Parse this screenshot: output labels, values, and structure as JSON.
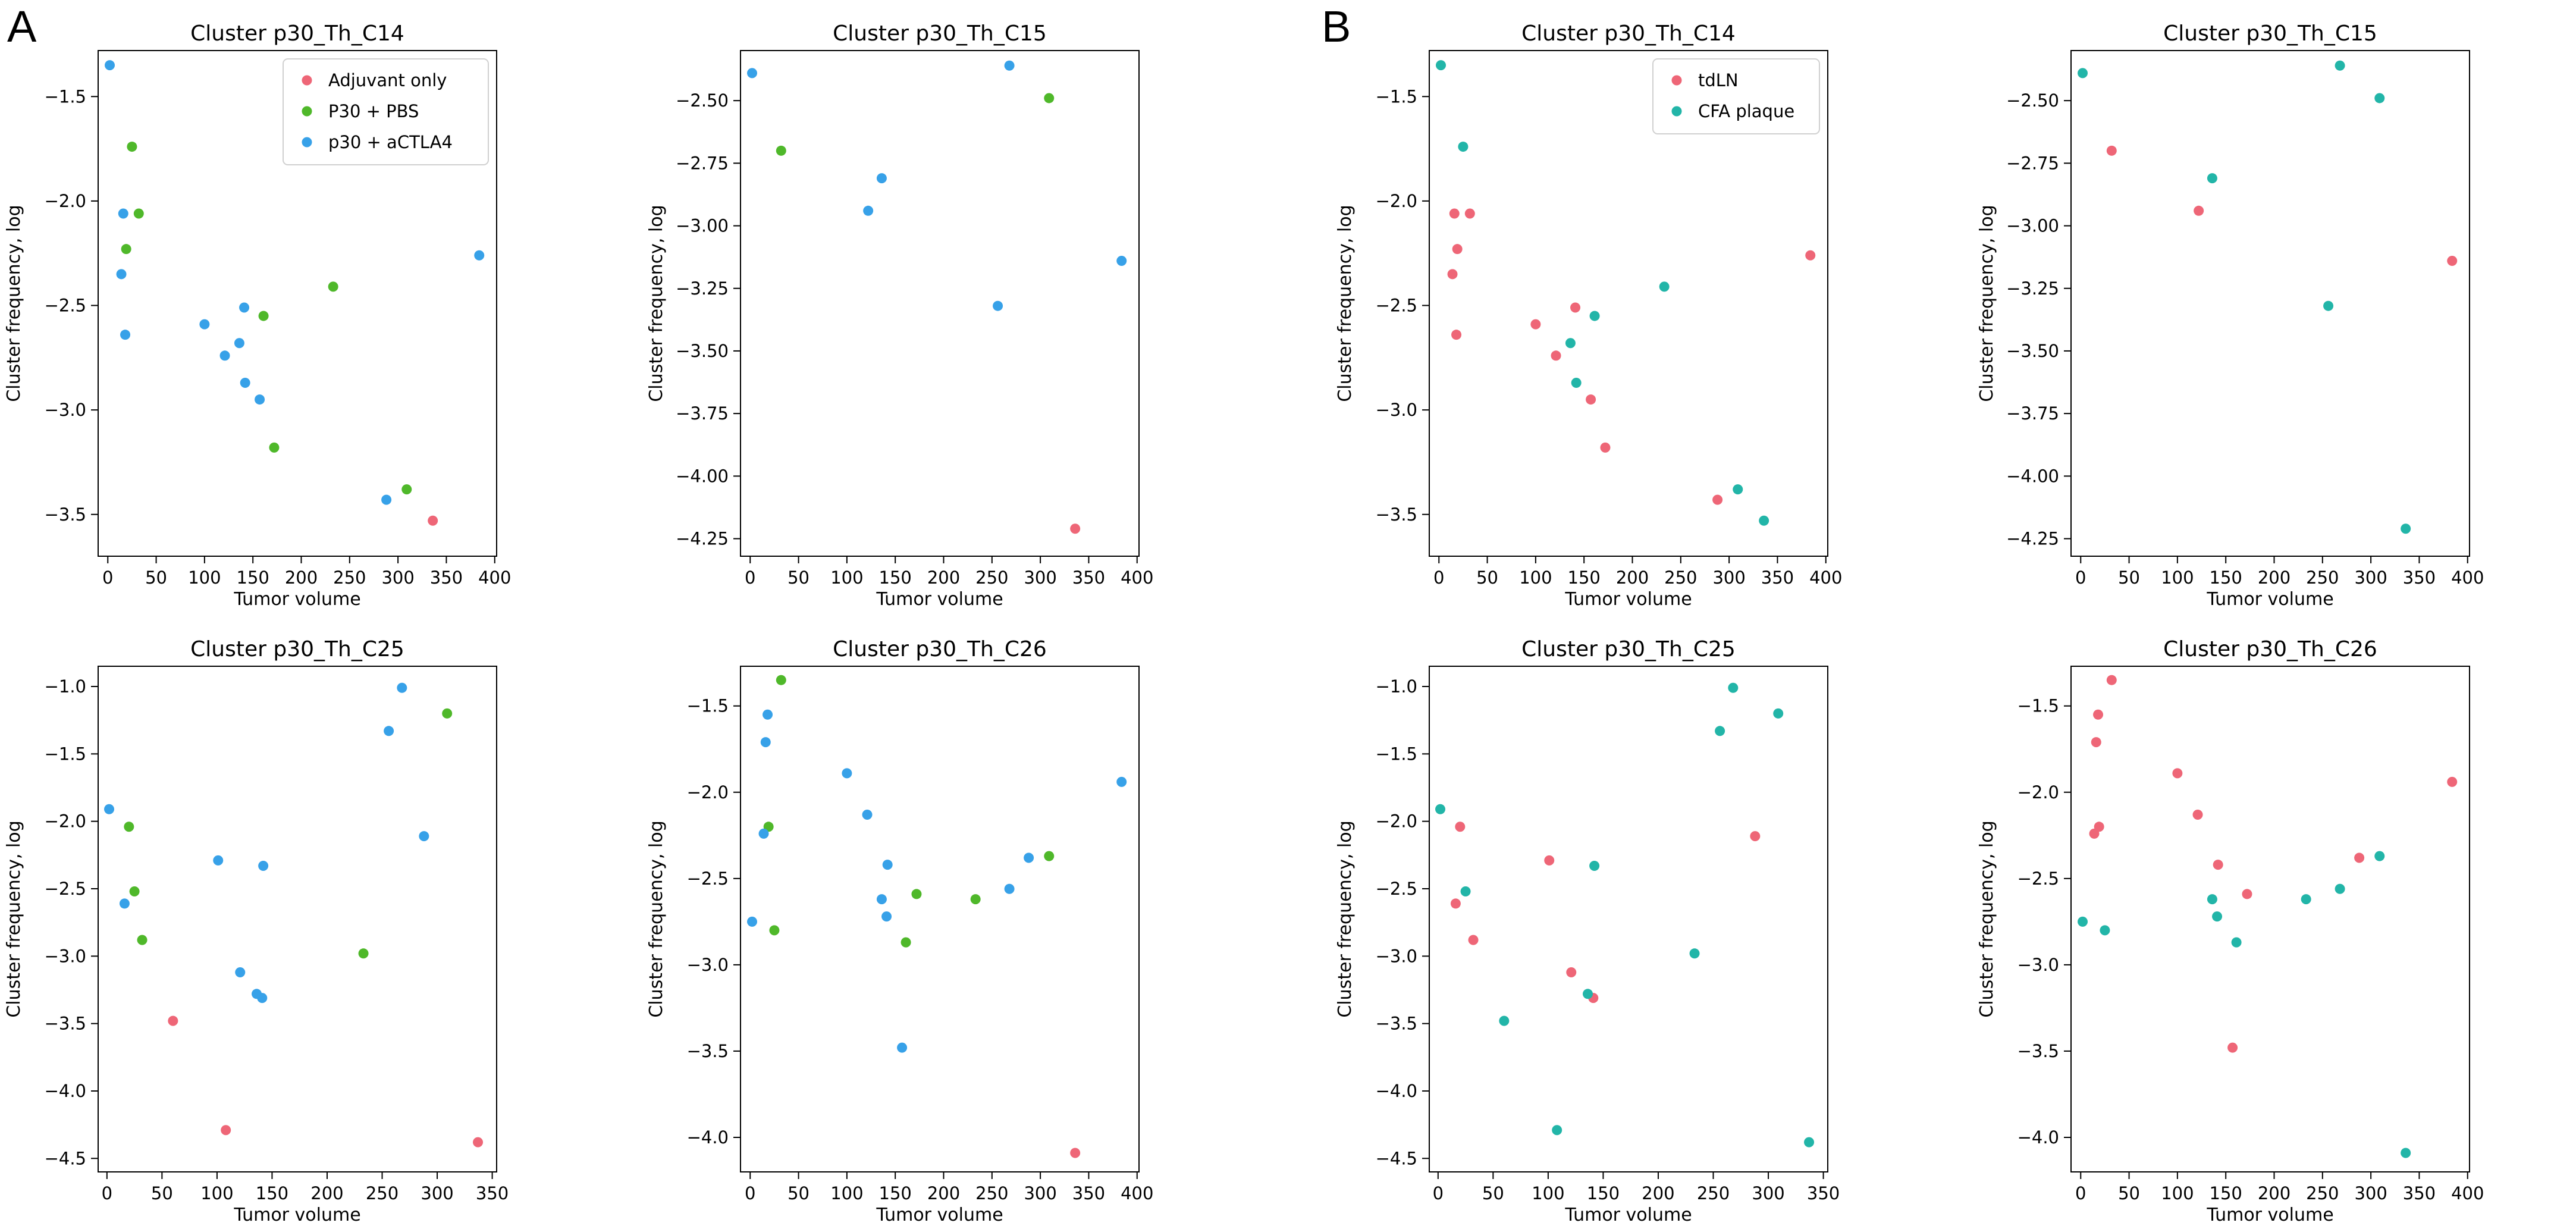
{
  "panels": [
    {
      "label": "A"
    },
    {
      "label": "B"
    }
  ],
  "colors": {
    "adjuvant": "#ee6677",
    "pbs": "#4fb82a",
    "actla4": "#37a1e8",
    "tdln": "#ee6677",
    "cfa": "#22b5a8"
  },
  "chart_data": [
    {
      "type": "scatter",
      "panel": "A",
      "title": "Cluster p30_Th_C14",
      "xlabel": "Tumor volume",
      "ylabel": "Cluster frequency, log",
      "xlim": [
        -10,
        402
      ],
      "ylim": [
        -3.7,
        -1.28
      ],
      "xticks": [
        "0",
        "50",
        "100",
        "150",
        "200",
        "250",
        "300",
        "350",
        "400"
      ],
      "yticks": [
        "-3.5",
        "-3.0",
        "-2.5",
        "-2.0",
        "-1.5"
      ],
      "legend": "top-right",
      "series": [
        {
          "name": "Adjuvant only",
          "color": "#ee6677",
          "x": [
            336
          ],
          "y": [
            -3.53
          ]
        },
        {
          "name": "P30 + PBS",
          "color": "#4fb82a",
          "x": [
            19,
            25,
            32,
            161,
            233,
            172,
            309
          ],
          "y": [
            -2.23,
            -1.74,
            -2.06,
            -2.55,
            -2.41,
            -3.18,
            -3.38
          ]
        },
        {
          "name": "p30 + aCTLA4",
          "color": "#37a1e8",
          "x": [
            2,
            16,
            14,
            18,
            100,
            121,
            136,
            141,
            142,
            157,
            288,
            384
          ],
          "y": [
            -1.35,
            -2.06,
            -2.35,
            -2.64,
            -2.59,
            -2.74,
            -2.68,
            -2.51,
            -2.87,
            -2.95,
            -3.43,
            -2.26
          ]
        }
      ]
    },
    {
      "type": "scatter",
      "panel": "A",
      "title": "Cluster p30_Th_C15",
      "xlabel": "Tumor volume",
      "ylabel": "Cluster frequency, log",
      "xlim": [
        -10,
        402
      ],
      "ylim": [
        -4.32,
        -2.3
      ],
      "xticks": [
        "0",
        "50",
        "100",
        "150",
        "200",
        "250",
        "300",
        "350",
        "400"
      ],
      "yticks": [
        "-4.25",
        "-4.00",
        "-3.75",
        "-3.50",
        "-3.25",
        "-3.00",
        "-2.75",
        "-2.50"
      ],
      "series": [
        {
          "name": "Adjuvant only",
          "color": "#ee6677",
          "x": [
            336
          ],
          "y": [
            -4.21
          ]
        },
        {
          "name": "P30 + PBS",
          "color": "#4fb82a",
          "x": [
            32,
            309
          ],
          "y": [
            -2.7,
            -2.49
          ]
        },
        {
          "name": "p30 + aCTLA4",
          "color": "#37a1e8",
          "x": [
            2,
            122,
            136,
            256,
            268,
            384
          ],
          "y": [
            -2.39,
            -2.94,
            -2.81,
            -3.32,
            -2.36,
            -3.14
          ]
        }
      ]
    },
    {
      "type": "scatter",
      "panel": "A",
      "title": "Cluster p30_Th_C25",
      "xlabel": "Tumor volume",
      "ylabel": "Cluster frequency, log",
      "xlim": [
        -8,
        354
      ],
      "ylim": [
        -4.6,
        -0.85
      ],
      "xticks": [
        "0",
        "50",
        "100",
        "150",
        "200",
        "250",
        "300",
        "350"
      ],
      "yticks": [
        "-4.5",
        "-4.0",
        "-3.5",
        "-3.0",
        "-2.5",
        "-2.0",
        "-1.5",
        "-1.0"
      ],
      "series": [
        {
          "name": "Adjuvant only",
          "color": "#ee6677",
          "x": [
            60,
            108,
            337
          ],
          "y": [
            -3.48,
            -4.29,
            -4.38
          ]
        },
        {
          "name": "P30 + PBS",
          "color": "#4fb82a",
          "x": [
            20,
            25,
            32,
            233,
            309
          ],
          "y": [
            -2.04,
            -2.52,
            -2.88,
            -2.98,
            -1.2
          ]
        },
        {
          "name": "p30 + aCTLA4",
          "color": "#37a1e8",
          "x": [
            2,
            16,
            101,
            121,
            136,
            141,
            142,
            256,
            268,
            288
          ],
          "y": [
            -1.91,
            -2.61,
            -2.29,
            -3.12,
            -3.28,
            -3.31,
            -2.33,
            -1.33,
            -1.01,
            -2.11
          ]
        }
      ]
    },
    {
      "type": "scatter",
      "panel": "A",
      "title": "Cluster p30_Th_C26",
      "xlabel": "Tumor volume",
      "ylabel": "Cluster frequency, log",
      "xlim": [
        -10,
        402
      ],
      "ylim": [
        -4.2,
        -1.27
      ],
      "xticks": [
        "0",
        "50",
        "100",
        "150",
        "200",
        "250",
        "300",
        "350",
        "400"
      ],
      "yticks": [
        "-4.0",
        "-3.5",
        "-3.0",
        "-2.5",
        "-2.0",
        "-1.5"
      ],
      "series": [
        {
          "name": "Adjuvant only",
          "color": "#ee6677",
          "x": [
            336
          ],
          "y": [
            -4.09
          ]
        },
        {
          "name": "P30 + PBS",
          "color": "#4fb82a",
          "x": [
            19,
            25,
            32,
            161,
            172,
            233,
            309
          ],
          "y": [
            -2.2,
            -2.8,
            -1.35,
            -2.87,
            -2.59,
            -2.62,
            -2.37
          ]
        },
        {
          "name": "p30 + aCTLA4",
          "color": "#37a1e8",
          "x": [
            2,
            14,
            16,
            18,
            100,
            121,
            136,
            141,
            142,
            157,
            268,
            288,
            384
          ],
          "y": [
            -2.75,
            -2.24,
            -1.71,
            -1.55,
            -1.89,
            -2.13,
            -2.62,
            -2.72,
            -2.42,
            -3.48,
            -2.56,
            -2.38,
            -1.94
          ]
        }
      ]
    },
    {
      "type": "scatter",
      "panel": "B",
      "title": "Cluster p30_Th_C14",
      "xlabel": "Tumor volume",
      "ylabel": "Cluster frequency, log",
      "xlim": [
        -10,
        402
      ],
      "ylim": [
        -3.7,
        -1.28
      ],
      "xticks": [
        "0",
        "50",
        "100",
        "150",
        "200",
        "250",
        "300",
        "350",
        "400"
      ],
      "yticks": [
        "-3.5",
        "-3.0",
        "-2.5",
        "-2.0",
        "-1.5"
      ],
      "legend": "top-right",
      "series": [
        {
          "name": "tdLN",
          "color": "#ee6677",
          "x": [
            14,
            16,
            18,
            19,
            32,
            100,
            121,
            141,
            157,
            172,
            288,
            384
          ],
          "y": [
            -2.35,
            -2.06,
            -2.64,
            -2.23,
            -2.06,
            -2.59,
            -2.74,
            -2.51,
            -2.95,
            -3.18,
            -3.43,
            -2.26
          ]
        },
        {
          "name": "CFA plaque",
          "color": "#22b5a8",
          "x": [
            2,
            25,
            136,
            142,
            161,
            233,
            309,
            336
          ],
          "y": [
            -1.35,
            -1.74,
            -2.68,
            -2.87,
            -2.55,
            -2.41,
            -3.38,
            -3.53
          ]
        }
      ]
    },
    {
      "type": "scatter",
      "panel": "B",
      "title": "Cluster p30_Th_C15",
      "xlabel": "Tumor volume",
      "ylabel": "Cluster frequency, log",
      "xlim": [
        -10,
        402
      ],
      "ylim": [
        -4.32,
        -2.3
      ],
      "xticks": [
        "0",
        "50",
        "100",
        "150",
        "200",
        "250",
        "300",
        "350",
        "400"
      ],
      "yticks": [
        "-4.25",
        "-4.00",
        "-3.75",
        "-3.50",
        "-3.25",
        "-3.00",
        "-2.75",
        "-2.50"
      ],
      "series": [
        {
          "name": "tdLN",
          "color": "#ee6677",
          "x": [
            32,
            122,
            384
          ],
          "y": [
            -2.7,
            -2.94,
            -3.14
          ]
        },
        {
          "name": "CFA plaque",
          "color": "#22b5a8",
          "x": [
            2,
            136,
            256,
            268,
            309,
            336
          ],
          "y": [
            -2.39,
            -2.81,
            -3.32,
            -2.36,
            -2.49,
            -4.21
          ]
        }
      ]
    },
    {
      "type": "scatter",
      "panel": "B",
      "title": "Cluster p30_Th_C25",
      "xlabel": "Tumor volume",
      "ylabel": "Cluster frequency, log",
      "xlim": [
        -8,
        354
      ],
      "ylim": [
        -4.6,
        -0.85
      ],
      "xticks": [
        "0",
        "50",
        "100",
        "150",
        "200",
        "250",
        "300",
        "350"
      ],
      "yticks": [
        "-4.5",
        "-4.0",
        "-3.5",
        "-3.0",
        "-2.5",
        "-2.0",
        "-1.5",
        "-1.0"
      ],
      "series": [
        {
          "name": "tdLN",
          "color": "#ee6677",
          "x": [
            16,
            20,
            32,
            101,
            121,
            141,
            288
          ],
          "y": [
            -2.61,
            -2.04,
            -2.88,
            -2.29,
            -3.12,
            -3.31,
            -2.11
          ]
        },
        {
          "name": "CFA plaque",
          "color": "#22b5a8",
          "x": [
            2,
            25,
            60,
            108,
            136,
            142,
            233,
            256,
            268,
            309,
            337
          ],
          "y": [
            -1.91,
            -2.52,
            -3.48,
            -4.29,
            -3.28,
            -2.33,
            -2.98,
            -1.33,
            -1.01,
            -1.2,
            -4.38
          ]
        }
      ]
    },
    {
      "type": "scatter",
      "panel": "B",
      "title": "Cluster p30_Th_C26",
      "xlabel": "Tumor volume",
      "ylabel": "Cluster frequency, log",
      "xlim": [
        -10,
        402
      ],
      "ylim": [
        -4.2,
        -1.27
      ],
      "xticks": [
        "0",
        "50",
        "100",
        "150",
        "200",
        "250",
        "300",
        "350",
        "400"
      ],
      "yticks": [
        "-4.0",
        "-3.5",
        "-3.0",
        "-2.5",
        "-2.0",
        "-1.5"
      ],
      "series": [
        {
          "name": "tdLN",
          "color": "#ee6677",
          "x": [
            14,
            16,
            18,
            19,
            32,
            100,
            121,
            142,
            157,
            172,
            288,
            384
          ],
          "y": [
            -2.24,
            -1.71,
            -1.55,
            -2.2,
            -1.35,
            -1.89,
            -2.13,
            -2.42,
            -3.48,
            -2.59,
            -2.38,
            -1.94
          ]
        },
        {
          "name": "CFA plaque",
          "color": "#22b5a8",
          "x": [
            2,
            25,
            136,
            141,
            161,
            233,
            268,
            309,
            336
          ],
          "y": [
            -2.75,
            -2.8,
            -2.62,
            -2.72,
            -2.87,
            -2.62,
            -2.56,
            -2.37,
            -4.09
          ]
        }
      ]
    }
  ]
}
